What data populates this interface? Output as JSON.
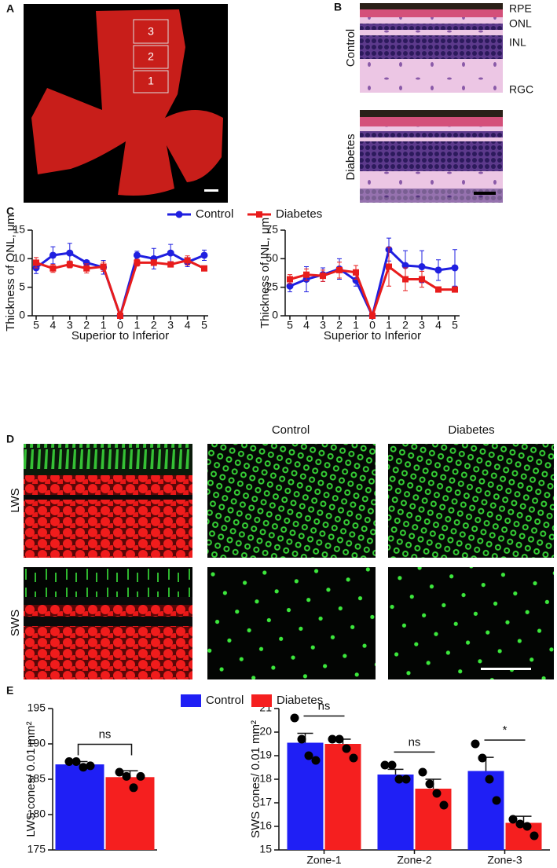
{
  "panels": {
    "a": "A",
    "b": "B",
    "c": "C",
    "d": "D",
    "e": "E"
  },
  "panel_a": {
    "zones": [
      "3",
      "2",
      "1"
    ]
  },
  "panel_b": {
    "layers": [
      "RPE",
      "ONL",
      "INL",
      "RGC"
    ],
    "groups": [
      "Control",
      "Diabetes"
    ]
  },
  "panel_d": {
    "columns": [
      "Control",
      "Diabetes"
    ],
    "rows": [
      "LWS",
      "SWS"
    ]
  },
  "chart_data": [
    {
      "type": "line",
      "ylabel": "Thickness of ONL, μm",
      "xlabel": "Superior to Inferior",
      "categories": [
        "5",
        "4",
        "3",
        "2",
        "1",
        "0",
        "1",
        "2",
        "3",
        "4",
        "5"
      ],
      "ylim": [
        0,
        15
      ],
      "yticks": [
        0,
        5,
        10,
        15
      ],
      "series": [
        {
          "name": "Control",
          "color": "#1f1fe0",
          "marker": "circle",
          "values": [
            8.4,
            10.6,
            11.0,
            9.3,
            8.5,
            0,
            10.6,
            10.0,
            11.0,
            9.4,
            10.6
          ],
          "errors": [
            1.0,
            1.5,
            1.7,
            0.4,
            1.2,
            0,
            0.7,
            1.8,
            1.5,
            0.8,
            0.9
          ]
        },
        {
          "name": "Diabetes",
          "color": "#e81c1c",
          "marker": "square",
          "values": [
            9.3,
            8.3,
            9.0,
            8.3,
            8.6,
            0,
            9.3,
            9.3,
            9.0,
            9.7,
            8.3
          ],
          "errors": [
            0.9,
            0.7,
            0.6,
            0.8,
            0.8,
            0,
            0.6,
            0.5,
            0.4,
            0.8,
            0.3
          ]
        }
      ]
    },
    {
      "type": "line",
      "ylabel": "Thickness of INL, μm",
      "xlabel": "Superior to Inferior",
      "categories": [
        "5",
        "4",
        "3",
        "2",
        "1",
        "0",
        "1",
        "2",
        "3",
        "4",
        "5"
      ],
      "ylim": [
        0,
        75
      ],
      "yticks": [
        0,
        25,
        50,
        75
      ],
      "series": [
        {
          "color": "#1f1fe0",
          "marker": "circle",
          "values": [
            26,
            32,
            36,
            41,
            31,
            0,
            58,
            44,
            43,
            40,
            42
          ],
          "errors": [
            5,
            11,
            6,
            9,
            5,
            0,
            10,
            13,
            14,
            9,
            16
          ]
        },
        {
          "color": "#e81c1c",
          "marker": "square",
          "values": [
            32,
            36,
            35,
            40,
            38,
            0,
            43,
            32,
            32,
            23,
            23
          ],
          "errors": [
            4,
            5,
            5,
            7,
            6,
            0,
            17,
            10,
            7,
            2,
            2
          ]
        }
      ]
    },
    {
      "type": "bar",
      "ylabel": "LWS cones/ 0.01 mm²",
      "categories": [
        null
      ],
      "ylim": [
        175,
        195
      ],
      "yticks": [
        175,
        180,
        185,
        190,
        195
      ],
      "annotations": [
        "ns"
      ],
      "series": [
        {
          "name": "Control",
          "color": "#1f1ff5",
          "values": [
            187.1
          ],
          "errors": [
            0.4
          ],
          "points": [
            [
              187.5,
              187.5,
              186.7,
              186.9
            ]
          ]
        },
        {
          "name": "Diabetes",
          "color": "#f51f1f",
          "values": [
            185.3
          ],
          "errors": [
            0.9
          ],
          "points": [
            [
              186.0,
              185.4,
              183.8,
              185.4
            ]
          ]
        }
      ]
    },
    {
      "type": "bar",
      "ylabel": "SWS cones/ 0.01 mm²",
      "categories": [
        "Zone-1",
        "Zone-2",
        "Zone-3"
      ],
      "ylim": [
        15,
        21
      ],
      "yticks": [
        15,
        16,
        17,
        18,
        19,
        20,
        21
      ],
      "annotations": [
        "ns",
        "ns",
        "*"
      ],
      "series": [
        {
          "color": "#1f1ff5",
          "values": [
            19.55,
            18.2,
            18.35
          ],
          "errors": [
            0.4,
            0.22,
            0.58
          ],
          "points": [
            [
              20.6,
              19.7,
              19.0,
              18.8
            ],
            [
              18.6,
              18.6,
              18.0,
              18.0
            ],
            [
              19.5,
              18.9,
              18.0,
              17.1
            ]
          ]
        },
        {
          "color": "#f51f1f",
          "values": [
            19.5,
            17.6,
            16.15
          ],
          "errors": [
            0.2,
            0.4,
            0.28
          ],
          "points": [
            [
              19.7,
              19.7,
              19.3,
              18.9
            ],
            [
              18.3,
              17.8,
              17.4,
              16.9
            ],
            [
              16.3,
              16.1,
              16.0,
              15.6
            ]
          ]
        }
      ]
    }
  ]
}
